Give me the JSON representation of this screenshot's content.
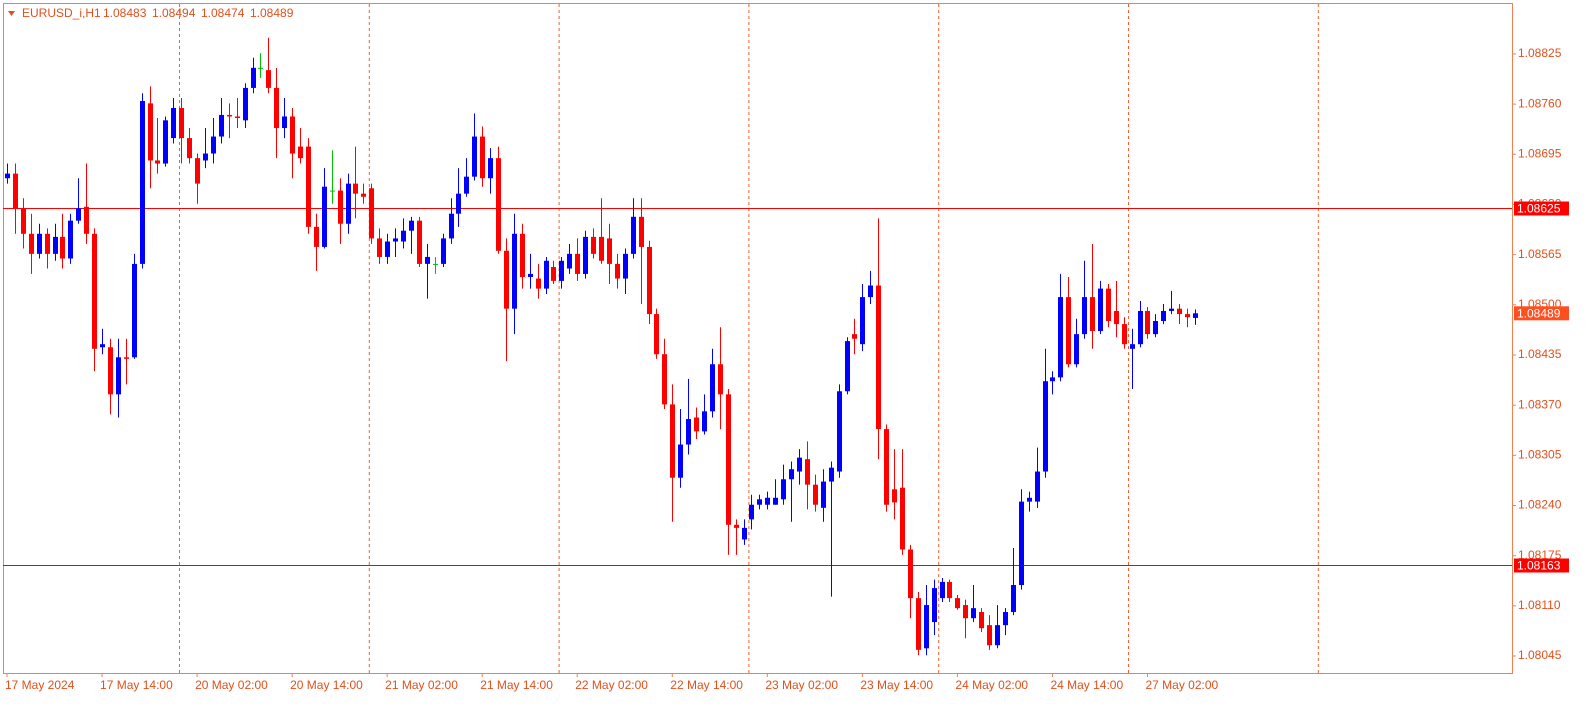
{
  "chart_data": {
    "type": "candlestick",
    "symbol": "EURUSD_i,H1",
    "up_color": "#0000ff",
    "down_color": "#ff0000",
    "doji_color": "#00c000",
    "categories": [
      "17 May 2024",
      null,
      null,
      null,
      null,
      null,
      null,
      null,
      null,
      null,
      null,
      null,
      "17 May 14:00",
      null,
      null,
      null,
      null,
      null,
      null,
      null,
      null,
      null,
      null,
      null,
      "20 May 02:00",
      null,
      null,
      null,
      null,
      null,
      null,
      null,
      null,
      null,
      null,
      null,
      "20 May 14:00",
      null,
      null,
      null,
      null,
      null,
      null,
      null,
      null,
      null,
      null,
      null,
      "21 May 02:00",
      null,
      null,
      null,
      null,
      null,
      null,
      null,
      null,
      null,
      null,
      null,
      "21 May 14:00",
      null,
      null,
      null,
      null,
      null,
      null,
      null,
      null,
      null,
      null,
      null,
      "22 May 02:00",
      null,
      null,
      null,
      null,
      null,
      null,
      null,
      null,
      null,
      null,
      null,
      "22 May 14:00",
      null,
      null,
      null,
      null,
      null,
      null,
      null,
      null,
      null,
      null,
      null,
      "23 May 02:00",
      null,
      null,
      null,
      null,
      null,
      null,
      null,
      null,
      null,
      null,
      null,
      "23 May 14:00",
      null,
      null,
      null,
      null,
      null,
      null,
      null,
      null,
      null,
      null,
      null,
      "24 May 02:00",
      null,
      null,
      null,
      null,
      null,
      null,
      null,
      null,
      null,
      null,
      null,
      "24 May 14:00",
      null,
      null,
      null,
      null,
      null,
      null,
      null,
      null,
      null,
      null,
      null,
      "27 May 02:00",
      null,
      null,
      null,
      null,
      null,
      null
    ],
    "open": [
      1.08664,
      1.0867,
      1.08625,
      1.08592,
      1.08566,
      1.08592,
      1.08566,
      1.08588,
      1.0856,
      1.08609,
      1.08627,
      1.08592,
      1.08445,
      1.08445,
      1.08384,
      1.08432,
      1.08432,
      1.08553,
      1.08761,
      1.08687,
      1.08683,
      1.08716,
      1.08755,
      1.08716,
      1.0869,
      1.08687,
      1.08696,
      1.08718,
      1.08746,
      1.08744,
      1.08739,
      1.08781,
      1.08807,
      1.08804,
      1.08781,
      1.08729,
      1.08744,
      1.08705,
      1.08705,
      1.08601,
      1.08575,
      1.08648,
      1.08648,
      1.08605,
      1.08657,
      1.08644,
      1.08651,
      1.08586,
      1.08562,
      1.08582,
      1.08582,
      1.08596,
      1.08609,
      1.08553,
      1.08553,
      1.08553,
      1.08586,
      1.08618,
      1.08644,
      1.08666,
      1.08718,
      1.08664,
      1.0869,
      1.0857,
      1.08495,
      1.08592,
      1.08536,
      1.08534,
      1.08521,
      1.08549,
      1.08531,
      1.08547,
      1.08566,
      1.0854,
      1.08588,
      1.08588,
      1.08586,
      1.08553,
      1.08534,
      1.08566,
      1.08614,
      1.08575,
      1.08488,
      1.08436,
      1.08371,
      1.08276,
      1.08319,
      1.08354,
      1.08336,
      1.08362,
      1.08423,
      1.08384,
      1.08215,
      1.08196,
      1.08222,
      1.08241,
      1.08241,
      1.08241,
      1.08248,
      1.08274,
      1.08284,
      1.083,
      1.08267,
      1.08237,
      1.08271,
      1.08284,
      1.08388,
      1.08462,
      1.08449,
      1.0851,
      1.08525,
      1.08339,
      1.08261,
      1.08263,
      1.08183,
      1.0812,
      1.08055,
      1.08089,
      1.0812,
      1.08141,
      1.0812,
      1.08111,
      1.08094,
      1.08102,
      1.08085,
      1.08059,
      1.08085,
      1.08102,
      1.08137,
      1.08245,
      1.08245,
      1.08284,
      1.08401,
      1.08406,
      1.0851,
      1.08423,
      1.08462,
      1.0851,
      1.08466,
      1.08521,
      1.08492,
      1.08475,
      1.08443,
      1.08449,
      1.08492,
      1.08462,
      1.08479,
      1.08492,
      1.08495,
      1.08488,
      1.08483
    ],
    "high": [
      1.08683,
      1.08683,
      1.08638,
      1.08618,
      1.08605,
      1.08599,
      1.08605,
      1.08618,
      1.08618,
      1.08664,
      1.08683,
      1.08599,
      1.08469,
      1.08456,
      1.08456,
      1.08456,
      1.08566,
      1.08774,
      1.08783,
      1.08742,
      1.08744,
      1.08768,
      1.08768,
      1.08729,
      1.08696,
      1.08729,
      1.08742,
      1.08768,
      1.08761,
      1.08768,
      1.08787,
      1.0882,
      1.08826,
      1.08846,
      1.08807,
      1.08768,
      1.08755,
      1.08729,
      1.08716,
      1.08618,
      1.08677,
      1.087,
      1.08664,
      1.0867,
      1.08705,
      1.08657,
      1.08657,
      1.08599,
      1.08592,
      1.08599,
      1.08612,
      1.08614,
      1.08614,
      1.08579,
      1.08562,
      1.08592,
      1.08638,
      1.08677,
      1.0869,
      1.08748,
      1.08731,
      1.08703,
      1.08705,
      1.08586,
      1.08618,
      1.08605,
      1.08566,
      1.08553,
      1.08562,
      1.08557,
      1.08562,
      1.08579,
      1.08586,
      1.08596,
      1.08599,
      1.08638,
      1.08605,
      1.08566,
      1.08573,
      1.08638,
      1.08638,
      1.08583,
      1.08495,
      1.08456,
      1.08397,
      1.08365,
      1.08404,
      1.08367,
      1.08384,
      1.08443,
      1.08471,
      1.08391,
      1.08222,
      1.08222,
      1.08254,
      1.08254,
      1.08258,
      1.08274,
      1.08293,
      1.08297,
      1.08313,
      1.08323,
      1.0828,
      1.08287,
      1.08297,
      1.08397,
      1.08458,
      1.08482,
      1.08527,
      1.08544,
      1.08612,
      1.08345,
      1.08313,
      1.08313,
      1.08189,
      1.08128,
      1.08137,
      1.08144,
      1.08146,
      1.08144,
      1.08124,
      1.08118,
      1.08137,
      1.08107,
      1.08098,
      1.08111,
      1.08107,
      1.08185,
      1.08261,
      1.08258,
      1.08315,
      1.08443,
      1.08414,
      1.0854,
      1.08536,
      1.08482,
      1.08557,
      1.08579,
      1.08531,
      1.08527,
      1.08531,
      1.08484,
      1.08469,
      1.08505,
      1.08497,
      1.08488,
      1.08501,
      1.08518,
      1.08501,
      1.08495,
      1.08494
    ],
    "low": [
      1.08657,
      1.08592,
      1.08573,
      1.0854,
      1.0856,
      1.08547,
      1.08557,
      1.08547,
      1.08553,
      1.08605,
      1.08579,
      1.08414,
      1.08436,
      1.08358,
      1.08354,
      1.08397,
      1.0843,
      1.08547,
      1.08651,
      1.0867,
      1.08679,
      1.08709,
      1.08683,
      1.08683,
      1.08631,
      1.08677,
      1.08683,
      1.08709,
      1.08716,
      1.08729,
      1.08729,
      1.08774,
      1.08794,
      1.08774,
      1.0869,
      1.08716,
      1.08664,
      1.08683,
      1.08592,
      1.08544,
      1.08573,
      1.08631,
      1.08579,
      1.08592,
      1.08612,
      1.08631,
      1.08579,
      1.08553,
      1.08553,
      1.08562,
      1.08573,
      1.08566,
      1.08549,
      1.08508,
      1.0854,
      1.08549,
      1.08579,
      1.08601,
      1.0864,
      1.08661,
      1.08653,
      1.08644,
      1.08566,
      1.08427,
      1.08462,
      1.08521,
      1.08521,
      1.08508,
      1.08514,
      1.08527,
      1.08521,
      1.0854,
      1.08531,
      1.08534,
      1.0856,
      1.08553,
      1.08527,
      1.08521,
      1.08514,
      1.0856,
      1.08501,
      1.08475,
      1.0843,
      1.08365,
      1.08219,
      1.08263,
      1.08306,
      1.08326,
      1.08332,
      1.08354,
      1.08339,
      1.08176,
      1.08176,
      1.08189,
      1.08209,
      1.08235,
      1.08235,
      1.08241,
      1.08241,
      1.08219,
      1.08267,
      1.08235,
      1.08232,
      1.08219,
      1.08122,
      1.08276,
      1.08384,
      1.08436,
      1.0844,
      1.08501,
      1.083,
      1.08232,
      1.08222,
      1.08176,
      1.08094,
      1.08046,
      1.08046,
      1.08072,
      1.08115,
      1.08115,
      1.08105,
      1.08068,
      1.08089,
      1.08076,
      1.08053,
      1.08055,
      1.08072,
      1.08098,
      1.08131,
      1.08232,
      1.08237,
      1.08276,
      1.08384,
      1.08401,
      1.08419,
      1.08419,
      1.08456,
      1.08443,
      1.08462,
      1.08471,
      1.08458,
      1.08443,
      1.08391,
      1.08445,
      1.08456,
      1.08458,
      1.08475,
      1.08488,
      1.08475,
      1.08471,
      1.08474
    ],
    "close": [
      1.0867,
      1.08625,
      1.08592,
      1.08566,
      1.08592,
      1.08566,
      1.08588,
      1.0856,
      1.08609,
      1.08625,
      1.08592,
      1.08443,
      1.08449,
      1.08384,
      1.08432,
      1.0843,
      1.08553,
      1.08764,
      1.08687,
      1.08683,
      1.08739,
      1.08755,
      1.08716,
      1.0869,
      1.08657,
      1.08696,
      1.08718,
      1.08746,
      1.08744,
      1.08742,
      1.08781,
      1.08807,
      1.08807,
      1.08781,
      1.08729,
      1.08744,
      1.08696,
      1.0869,
      1.08601,
      1.08575,
      1.08653,
      1.08648,
      1.08605,
      1.08657,
      1.08644,
      1.0864,
      1.08586,
      1.08562,
      1.08582,
      1.08586,
      1.08596,
      1.08609,
      1.08553,
      1.08562,
      1.08553,
      1.08586,
      1.08618,
      1.08644,
      1.08666,
      1.08718,
      1.08664,
      1.0869,
      1.0857,
      1.08495,
      1.08592,
      1.08536,
      1.0854,
      1.08521,
      1.08557,
      1.08531,
      1.08557,
      1.08566,
      1.0854,
      1.08588,
      1.08566,
      1.08557,
      1.08553,
      1.08534,
      1.08566,
      1.08614,
      1.08575,
      1.08488,
      1.08436,
      1.08371,
      1.08276,
      1.08319,
      1.08352,
      1.08336,
      1.08362,
      1.08423,
      1.08384,
      1.08215,
      1.08211,
      1.08211,
      1.08241,
      1.08248,
      1.0825,
      1.0825,
      1.08274,
      1.08287,
      1.08302,
      1.08267,
      1.08241,
      1.08271,
      1.08289,
      1.08388,
      1.08453,
      1.08456,
      1.0851,
      1.08525,
      1.08339,
      1.08241,
      1.08244,
      1.08183,
      1.0812,
      1.08053,
      1.08111,
      1.08133,
      1.08141,
      1.0812,
      1.08107,
      1.08094,
      1.08107,
      1.08081,
      1.08059,
      1.08085,
      1.08102,
      1.08137,
      1.08245,
      1.0825,
      1.08284,
      1.08401,
      1.08406,
      1.0851,
      1.08423,
      1.08462,
      1.0851,
      1.08466,
      1.08521,
      1.08479,
      1.08475,
      1.08449,
      1.08449,
      1.08492,
      1.08462,
      1.08479,
      1.08492,
      1.08495,
      1.08488,
      1.08484,
      1.08489
    ],
    "ylim": [
      1.08023,
      1.08891
    ],
    "yticks": [
      1.08825,
      {
        "value": 1.0876,
        "label": "1.08760"
      },
      1.08695,
      {
        "value": 1.0863,
        "label": "1.08630"
      },
      1.08565,
      {
        "value": 1.085,
        "label": "1.08500"
      },
      1.08435,
      {
        "value": 1.0837,
        "label": "1.08370"
      },
      1.08305,
      {
        "value": 1.0824,
        "label": "1.08240"
      },
      1.08175,
      {
        "value": 1.0811,
        "label": "1.08110"
      },
      1.08045
    ],
    "levels": [
      1.08625,
      1.08163
    ],
    "level_color": "#ff0000",
    "bid_color": "#ff4f1f"
  }
}
